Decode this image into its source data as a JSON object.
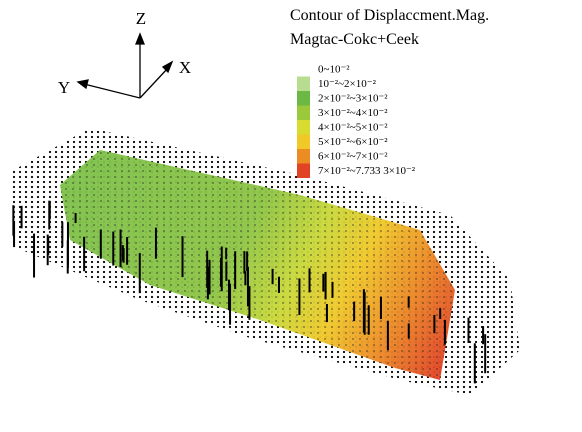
{
  "axes": {
    "z": "Z",
    "x": "X",
    "y": "Y"
  },
  "title": [
    "Contour of Displaccment.Mag.",
    "Magtac-Cokc+Ceek"
  ],
  "legend": [
    {
      "label": "0~10⁻²",
      "color": "#ffffff"
    },
    {
      "label": "10⁻²~2×10⁻²",
      "color": "#b8dc90"
    },
    {
      "label": "2×10⁻²~3×10⁻²",
      "color": "#6cb844"
    },
    {
      "label": "3×10⁻²~4×10⁻²",
      "color": "#9cc83c"
    },
    {
      "label": "4×10⁻²~5×10⁻²",
      "color": "#d8dc30"
    },
    {
      "label": "5×10⁻²~6×10⁻²",
      "color": "#f0c828"
    },
    {
      "label": "6×10⁻²~7×10⁻²",
      "color": "#ec8c24"
    },
    {
      "label": "7×10⁻²~7.733 3×10⁻²",
      "color": "#e04424"
    }
  ]
}
